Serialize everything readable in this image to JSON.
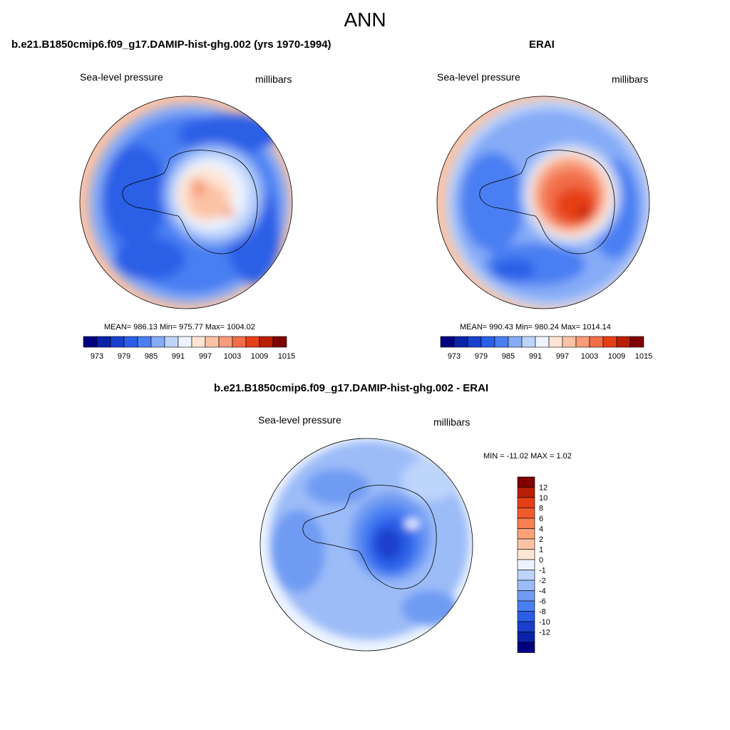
{
  "title": "ANN",
  "panels": {
    "model": {
      "title": "b.e21.B1850cmip6.f09_g17.DAMIP-hist-ghg.002 (yrs 1970-1994)",
      "left_label": "Sea-level pressure",
      "right_label": "millibars",
      "stats": "MEAN= 986.13  Min= 975.77  Max= 1004.02"
    },
    "obs": {
      "title": "ERAI",
      "left_label": "Sea-level pressure",
      "right_label": "millibars",
      "stats": "MEAN= 990.43  Min= 980.24  Max= 1014.14"
    },
    "diff": {
      "title": "b.e21.B1850cmip6.f09_g17.DAMIP-hist-ghg.002 - ERAI",
      "left_label": "Sea-level pressure",
      "right_label": "millibars",
      "stats": "MIN = -11.02 MAX =   1.02"
    }
  },
  "colorbar_abs": {
    "colors": [
      "#00007f",
      "#0a22a8",
      "#1a3fcc",
      "#2b5ee6",
      "#4a7ff2",
      "#86acf7",
      "#bdd4fb",
      "#eef4ff",
      "#fde4d4",
      "#fbc3a6",
      "#f89b78",
      "#f26d48",
      "#e63f18",
      "#b81f06",
      "#7f0000"
    ],
    "labels": [
      "973",
      "979",
      "985",
      "991",
      "997",
      "1003",
      "1009",
      "1015"
    ]
  },
  "colorbar_diff": {
    "colors": [
      "#7f0000",
      "#b81f06",
      "#e63f18",
      "#f25a2e",
      "#f77f52",
      "#f9a27a",
      "#fbc3a6",
      "#fde4d4",
      "#eef4ff",
      "#bdd4fb",
      "#9cbcf8",
      "#6f9bf3",
      "#4a7ff2",
      "#2b5ee6",
      "#1a3fcc",
      "#0a22a8",
      "#00007f"
    ],
    "labels": [
      "12",
      "10",
      "8",
      "6",
      "4",
      "2",
      "1",
      "0",
      "-1",
      "-2",
      "-4",
      "-6",
      "-8",
      "-10",
      "-12"
    ]
  }
}
